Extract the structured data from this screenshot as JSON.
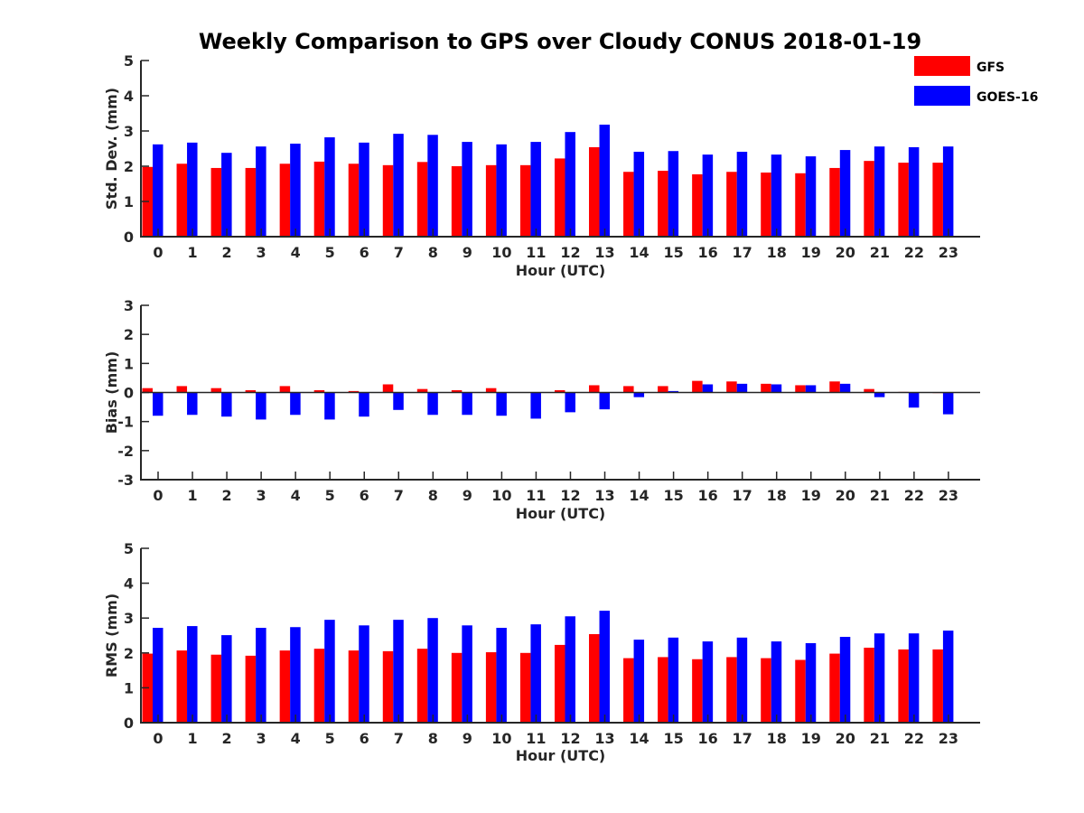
{
  "title": "Weekly Comparison to GPS over Cloudy CONUS 2018-01-19",
  "legend": {
    "placement": "top-right",
    "entries": [
      {
        "name": "GFS",
        "color": "#ff0000"
      },
      {
        "name": "GOES-16",
        "color": "#0000ff"
      }
    ]
  },
  "chart_data": [
    {
      "type": "bar",
      "xlabel": "Hour (UTC)",
      "ylabel": "Std. Dev. (mm)",
      "ylim": [
        0,
        5
      ],
      "yticks": [
        "0",
        "1",
        "2",
        "3",
        "4",
        "5"
      ],
      "categories": [
        "0",
        "1",
        "2",
        "3",
        "4",
        "5",
        "6",
        "7",
        "8",
        "9",
        "10",
        "11",
        "12",
        "13",
        "14",
        "15",
        "16",
        "17",
        "18",
        "19",
        "20",
        "21",
        "22",
        "23"
      ],
      "series": [
        {
          "name": "GFS",
          "color": "#ff0000",
          "values": [
            1.98,
            2.07,
            1.95,
            1.95,
            2.07,
            2.13,
            2.07,
            2.03,
            2.12,
            2.0,
            2.03,
            2.03,
            2.22,
            2.54,
            1.84,
            1.87,
            1.77,
            1.84,
            1.82,
            1.8,
            1.95,
            2.15,
            2.1,
            2.1
          ]
        },
        {
          "name": "GOES-16",
          "color": "#0000ff",
          "values": [
            2.62,
            2.67,
            2.38,
            2.56,
            2.64,
            2.82,
            2.67,
            2.92,
            2.89,
            2.69,
            2.62,
            2.69,
            2.97,
            3.18,
            2.41,
            2.43,
            2.33,
            2.41,
            2.33,
            2.28,
            2.46,
            2.56,
            2.54,
            2.56
          ]
        }
      ]
    },
    {
      "type": "bar",
      "xlabel": "Hour (UTC)",
      "ylabel": "Bias (mm)",
      "ylim": [
        -3,
        3
      ],
      "yticks": [
        "-3",
        "-2",
        "-1",
        "0",
        "1",
        "2",
        "3"
      ],
      "categories": [
        "0",
        "1",
        "2",
        "3",
        "4",
        "5",
        "6",
        "7",
        "8",
        "9",
        "10",
        "11",
        "12",
        "13",
        "14",
        "15",
        "16",
        "17",
        "18",
        "19",
        "20",
        "21",
        "22",
        "23"
      ],
      "series": [
        {
          "name": "GFS",
          "color": "#ff0000",
          "values": [
            0.15,
            0.22,
            0.15,
            0.08,
            0.22,
            0.08,
            0.05,
            0.28,
            0.12,
            0.08,
            0.15,
            0.0,
            0.08,
            0.25,
            0.22,
            0.22,
            0.4,
            0.38,
            0.3,
            0.25,
            0.38,
            0.12,
            0.02,
            -0.02
          ]
        },
        {
          "name": "GOES-16",
          "color": "#0000ff",
          "values": [
            -0.8,
            -0.77,
            -0.83,
            -0.93,
            -0.77,
            -0.93,
            -0.83,
            -0.6,
            -0.77,
            -0.77,
            -0.8,
            -0.9,
            -0.68,
            -0.58,
            -0.16,
            0.05,
            0.28,
            0.3,
            0.28,
            0.25,
            0.3,
            -0.16,
            -0.52,
            -0.75
          ]
        }
      ]
    },
    {
      "type": "bar",
      "xlabel": "Hour (UTC)",
      "ylabel": "RMS (mm)",
      "ylim": [
        0,
        5
      ],
      "yticks": [
        "0",
        "1",
        "2",
        "3",
        "4",
        "5"
      ],
      "categories": [
        "0",
        "1",
        "2",
        "3",
        "4",
        "5",
        "6",
        "7",
        "8",
        "9",
        "10",
        "11",
        "12",
        "13",
        "14",
        "15",
        "16",
        "17",
        "18",
        "19",
        "20",
        "21",
        "22",
        "23"
      ],
      "series": [
        {
          "name": "GFS",
          "color": "#ff0000",
          "values": [
            1.98,
            2.07,
            1.95,
            1.92,
            2.07,
            2.12,
            2.07,
            2.05,
            2.12,
            2.0,
            2.02,
            2.0,
            2.23,
            2.54,
            1.85,
            1.88,
            1.82,
            1.88,
            1.85,
            1.8,
            1.98,
            2.15,
            2.1,
            2.1
          ]
        },
        {
          "name": "GOES-16",
          "color": "#0000ff",
          "values": [
            2.72,
            2.77,
            2.51,
            2.72,
            2.74,
            2.95,
            2.79,
            2.95,
            3.0,
            2.79,
            2.72,
            2.82,
            3.05,
            3.21,
            2.38,
            2.44,
            2.33,
            2.44,
            2.33,
            2.28,
            2.46,
            2.56,
            2.56,
            2.64
          ]
        }
      ]
    }
  ]
}
